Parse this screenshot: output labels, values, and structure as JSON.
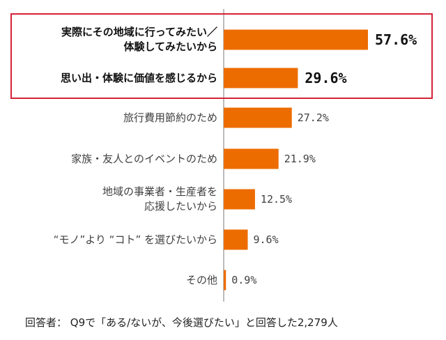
{
  "chart_data": {
    "type": "bar",
    "orientation": "horizontal",
    "categories": [
      "実際にその地域に行ってみたい／\n体験してみたいから",
      "思い出・体験に価値を感じるから",
      "旅行費用節約のため",
      "家族・友人とのイベントのため",
      "地域の事業者・生産者を\n応援したいから",
      "“モノ”より “コト” を選びたいから",
      "その他"
    ],
    "values": [
      57.6,
      29.6,
      27.2,
      21.9,
      12.5,
      9.6,
      0.9
    ],
    "value_labels": [
      "57.6%",
      "29.6%",
      "27.2%",
      "21.9%",
      "12.5%",
      "9.6%",
      "0.9%"
    ],
    "highlighted_categories": [
      0,
      1
    ],
    "bar_color": "#ed6c00",
    "highlight_box_color": "#d42336",
    "axis_color": "#a6a6a6",
    "grid": false,
    "legend": "none"
  },
  "footnote": "回答者： Q9で「ある/ないが、今後選びたい」と回答した2,279人"
}
